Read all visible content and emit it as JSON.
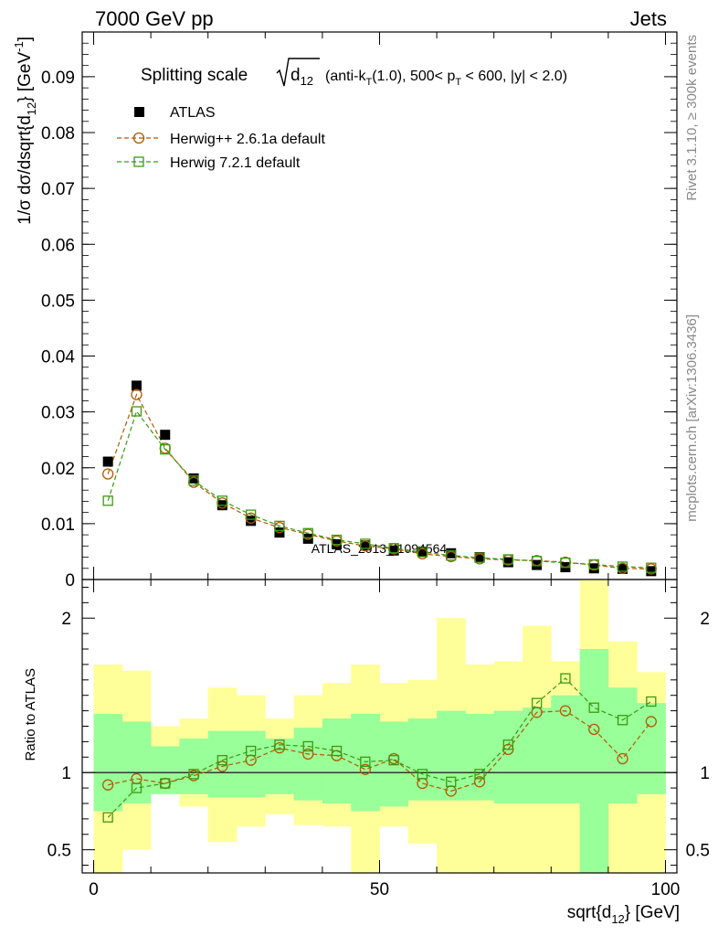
{
  "header": {
    "left": "7000 GeV pp",
    "right": "Jets"
  },
  "side_texts": {
    "rivet": "Rivet 3.1.10, ≥ 300k events",
    "mcplots": "mcplots.cern.ch [arXiv:1306.3436]"
  },
  "watermark": "ATLAS_2013_I1094564",
  "colors": {
    "atlas": "#000000",
    "herwigpp": "#b35900",
    "herwig7": "#3a9a10",
    "band_inner": "#99ff99",
    "band_outer": "#ffff99"
  },
  "chart_data": [
    {
      "type": "scatter",
      "title": "Splitting scale √d12 (anti-kT(1.0), 500< pT < 600, |y| < 2.0)",
      "title_parts": {
        "lead": "Splitting scale",
        "sym": "d",
        "sym_sub": "12",
        "pre": "(anti-k",
        "k_sub": "T",
        "mid": "(1.0), 500< p",
        "p_sub": "T",
        "post": " < 600, |y| < 2.0)"
      },
      "ylabel": "1/σ dσ/dsqrt{d12} [GeV⁻¹]",
      "ylabel_parts": {
        "main": "1/σ dσ/dsqrt{d",
        "sub": "12",
        "close": "} [GeV",
        "sup": "-1",
        "end": "]"
      },
      "xlim": [
        -2,
        102
      ],
      "ylim": [
        0,
        0.098
      ],
      "yticks": [
        "0",
        "0.01",
        "0.02",
        "0.03",
        "0.04",
        "0.05",
        "0.06",
        "0.07",
        "0.08",
        "0.09"
      ],
      "legend_position": "top-left",
      "x": [
        2.5,
        7.5,
        12.5,
        17.5,
        22.5,
        27.5,
        32.5,
        37.5,
        42.5,
        47.5,
        52.5,
        57.5,
        62.5,
        67.5,
        72.5,
        77.5,
        82.5,
        87.5,
        92.5,
        97.5
      ],
      "series": [
        {
          "name": "ATLAS",
          "marker": "filled-square",
          "values": [
            0.0211,
            0.0347,
            0.0259,
            0.0181,
            0.0133,
            0.0105,
            0.0084,
            0.0073,
            0.0063,
            0.0061,
            0.0052,
            0.005,
            0.0047,
            0.004,
            0.0031,
            0.0026,
            0.0022,
            0.002,
            0.0019,
            0.0015
          ]
        },
        {
          "name": "Herwig++ 2.6.1a default",
          "marker": "open-circle",
          "values": [
            0.0189,
            0.0331,
            0.0235,
            0.0174,
            0.0137,
            0.011,
            0.0093,
            0.0081,
            0.0069,
            0.006,
            0.0055,
            0.0046,
            0.0041,
            0.0037,
            0.0035,
            0.0034,
            0.0031,
            0.0026,
            0.002,
            0.0019
          ]
        },
        {
          "name": "Herwig 7.2.1 default",
          "marker": "open-square",
          "values": [
            0.0141,
            0.0301,
            0.0233,
            0.0177,
            0.0141,
            0.0116,
            0.0096,
            0.0083,
            0.0071,
            0.0064,
            0.0056,
            0.0049,
            0.0043,
            0.0039,
            0.0036,
            0.0033,
            0.003,
            0.0027,
            0.0023,
            0.0021
          ]
        }
      ]
    },
    {
      "type": "line",
      "ylabel": "Ratio to ATLAS",
      "xlabel": "sqrt{d12} [GeV]",
      "xlabel_parts": {
        "main": "sqrt{d",
        "sub": "12",
        "end": "} [GeV]"
      },
      "xlim": [
        -2,
        102
      ],
      "ylim": [
        0.35,
        2.25
      ],
      "xticks": [
        "0",
        "50",
        "100"
      ],
      "yticks": [
        "0.5",
        "1",
        "2"
      ],
      "x": [
        2.5,
        7.5,
        12.5,
        17.5,
        22.5,
        27.5,
        32.5,
        37.5,
        42.5,
        47.5,
        52.5,
        57.5,
        62.5,
        67.5,
        72.5,
        77.5,
        82.5,
        87.5,
        92.5,
        97.5
      ],
      "band_edges": [
        0,
        5,
        10,
        15,
        20,
        25,
        30,
        35,
        40,
        45,
        50,
        55,
        60,
        65,
        70,
        75,
        80,
        85,
        90,
        95,
        100
      ],
      "band_inner": {
        "lo": [
          0.75,
          0.8,
          0.86,
          0.86,
          0.84,
          0.84,
          0.86,
          0.82,
          0.8,
          0.75,
          0.78,
          0.82,
          0.82,
          0.82,
          0.8,
          0.8,
          0.8,
          0.35,
          0.8,
          0.86
        ],
        "hi": [
          1.38,
          1.33,
          1.17,
          1.22,
          1.27,
          1.27,
          1.22,
          1.29,
          1.35,
          1.38,
          1.33,
          1.35,
          1.4,
          1.38,
          1.4,
          1.42,
          1.5,
          1.8,
          1.55,
          1.45
        ]
      },
      "band_outer": {
        "lo": [
          0.35,
          0.5,
          0.86,
          0.78,
          0.55,
          0.65,
          0.73,
          0.66,
          0.65,
          0.35,
          0.65,
          0.54,
          0.35,
          0.35,
          0.35,
          0.35,
          0.35,
          0.35,
          0.35,
          0.35
        ],
        "hi": [
          1.7,
          1.66,
          1.3,
          1.35,
          1.55,
          1.5,
          1.35,
          1.5,
          1.58,
          1.7,
          1.58,
          1.6,
          2.0,
          1.7,
          1.72,
          1.95,
          1.72,
          2.25,
          1.85,
          1.65
        ]
      },
      "series": [
        {
          "name": "Herwig++ 2.6.1a default",
          "values": [
            0.92,
            0.96,
            0.93,
            0.98,
            1.04,
            1.08,
            1.16,
            1.12,
            1.11,
            1.02,
            1.09,
            0.93,
            0.88,
            0.94,
            1.15,
            1.39,
            1.4,
            1.28,
            1.09,
            1.33
          ]
        },
        {
          "name": "Herwig 7.2.1 default",
          "values": [
            0.71,
            0.9,
            0.93,
            0.99,
            1.08,
            1.14,
            1.18,
            1.17,
            1.14,
            1.07,
            1.08,
            0.99,
            0.94,
            0.99,
            1.18,
            1.45,
            1.61,
            1.42,
            1.34,
            1.46
          ]
        }
      ]
    }
  ]
}
